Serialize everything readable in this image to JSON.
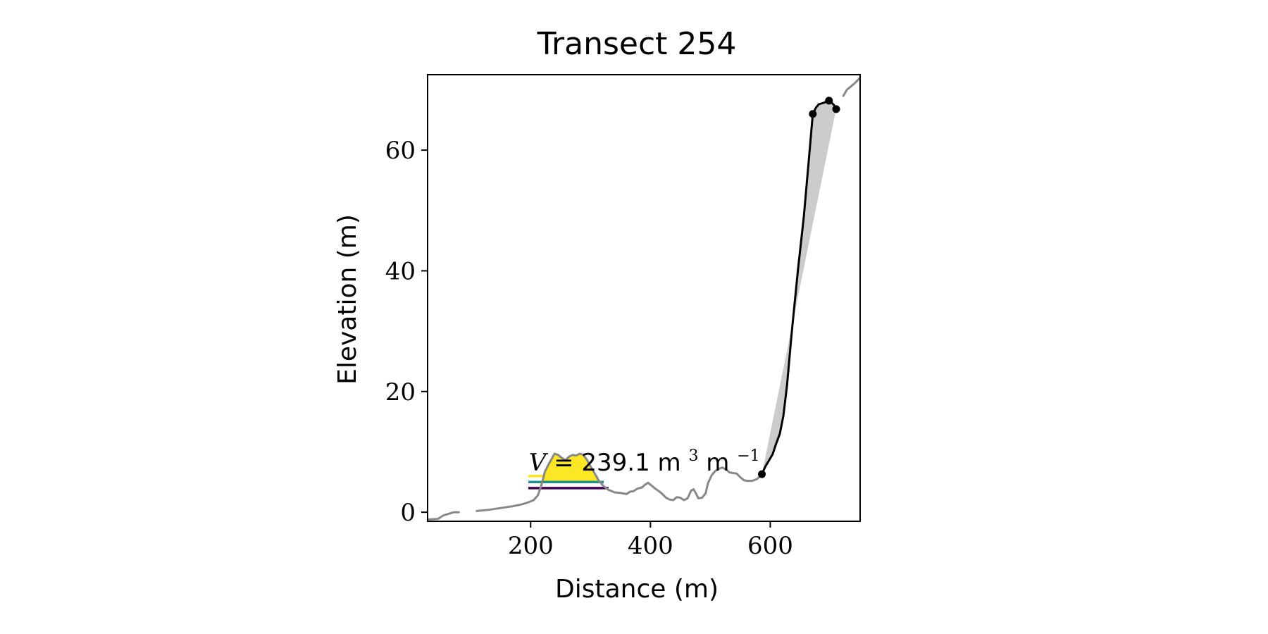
{
  "chart_data": {
    "type": "line",
    "title": "Transect 254",
    "xlabel": "Distance (m)",
    "ylabel": "Elevation (m)",
    "xlim": [
      28,
      750
    ],
    "ylim": [
      -1.5,
      72.5
    ],
    "xticks": [
      200,
      400,
      600
    ],
    "yticks": [
      0,
      20,
      40,
      60
    ],
    "grid": false,
    "annotation": {
      "x": 197,
      "y": 6.9,
      "variable": "V",
      "subscript": "",
      "text": "= 239.1 m",
      "sup1": "3",
      "unit2": " m",
      "sup2": "−1"
    },
    "series": [
      {
        "role": "profile",
        "color": "#888888",
        "segments": [
          [
            [
              28,
              -1.2
            ],
            [
              45,
              -1.1
            ],
            [
              55,
              -0.5
            ],
            [
              62,
              -0.3
            ],
            [
              72,
              0.0
            ],
            [
              80,
              0.0
            ]
          ],
          [
            [
              110,
              0.2
            ],
            [
              130,
              0.4
            ],
            [
              150,
              0.7
            ],
            [
              170,
              1.0
            ],
            [
              185,
              1.3
            ],
            [
              195,
              1.6
            ],
            [
              205,
              2.0
            ],
            [
              212,
              2.8
            ],
            [
              218,
              4.5
            ],
            [
              224,
              6.8
            ],
            [
              232,
              8.3
            ],
            [
              240,
              9.7
            ],
            [
              246,
              9.5
            ],
            [
              252,
              9.0
            ],
            [
              258,
              8.6
            ],
            [
              264,
              9.2
            ],
            [
              270,
              9.5
            ],
            [
              276,
              9.4
            ],
            [
              282,
              9.7
            ],
            [
              288,
              9.5
            ],
            [
              294,
              8.7
            ],
            [
              300,
              7.6
            ],
            [
              306,
              6.6
            ],
            [
              314,
              5.2
            ],
            [
              322,
              4.3
            ],
            [
              330,
              3.7
            ],
            [
              340,
              3.3
            ],
            [
              350,
              3.2
            ],
            [
              360,
              3.0
            ],
            [
              366,
              3.4
            ],
            [
              372,
              3.5
            ],
            [
              378,
              3.9
            ],
            [
              386,
              4.1
            ],
            [
              390,
              4.5
            ],
            [
              396,
              4.9
            ],
            [
              402,
              4.4
            ],
            [
              408,
              3.9
            ],
            [
              414,
              3.5
            ],
            [
              420,
              3.0
            ],
            [
              426,
              2.4
            ],
            [
              432,
              2.1
            ],
            [
              438,
              2.0
            ],
            [
              444,
              2.5
            ],
            [
              450,
              2.4
            ],
            [
              456,
              2.0
            ],
            [
              462,
              2.3
            ],
            [
              468,
              3.6
            ],
            [
              472,
              3.8
            ],
            [
              476,
              3.1
            ],
            [
              480,
              2.3
            ],
            [
              486,
              2.4
            ],
            [
              492,
              3.1
            ],
            [
              496,
              4.8
            ],
            [
              502,
              6.1
            ],
            [
              508,
              6.8
            ],
            [
              514,
              7.2
            ],
            [
              520,
              7.4
            ],
            [
              526,
              7.1
            ],
            [
              532,
              6.6
            ],
            [
              538,
              6.5
            ],
            [
              544,
              6.4
            ],
            [
              550,
              5.8
            ],
            [
              556,
              5.3
            ],
            [
              562,
              5.2
            ],
            [
              570,
              5.2
            ],
            [
              578,
              5.5
            ],
            [
              586,
              6.3
            ]
          ],
          [
            [
              722,
              69.0
            ],
            [
              728,
              70.0
            ],
            [
              740,
              71.0
            ],
            [
              750,
              72.0
            ]
          ]
        ]
      },
      {
        "role": "cliff",
        "color": "#000000",
        "points": [
          [
            586,
            6.3
          ],
          [
            592,
            7.6
          ],
          [
            598,
            8.6
          ],
          [
            604,
            9.6
          ],
          [
            610,
            11.4
          ],
          [
            616,
            13.0
          ],
          [
            622,
            16.0
          ],
          [
            628,
            21.0
          ],
          [
            636,
            30.0
          ],
          [
            646,
            40.0
          ],
          [
            656,
            49.0
          ],
          [
            664,
            58.0
          ],
          [
            671,
            66.0
          ],
          [
            676,
            67.0
          ],
          [
            681,
            67.6
          ],
          [
            691,
            67.9
          ],
          [
            696,
            68.2
          ],
          [
            700,
            68.1
          ],
          [
            704,
            67.7
          ],
          [
            706,
            67.5
          ],
          [
            708,
            67.2
          ],
          [
            710,
            66.8
          ]
        ]
      }
    ],
    "markers": {
      "color": "#000000",
      "points": [
        [
          586,
          6.3
        ],
        [
          671,
          66.0
        ],
        [
          698,
          68.2
        ],
        [
          710,
          66.8
        ]
      ]
    },
    "fills": [
      {
        "role": "cliff-wedge",
        "color": "#cccccc",
        "polygon": [
          [
            586,
            6.3
          ],
          [
            592,
            7.6
          ],
          [
            598,
            8.6
          ],
          [
            604,
            9.6
          ],
          [
            610,
            11.4
          ],
          [
            616,
            13.0
          ],
          [
            622,
            16.0
          ],
          [
            628,
            21.0
          ],
          [
            636,
            30.0
          ],
          [
            646,
            40.0
          ],
          [
            656,
            49.0
          ],
          [
            664,
            58.0
          ],
          [
            671,
            66.0
          ],
          [
            676,
            67.0
          ],
          [
            681,
            67.6
          ],
          [
            691,
            67.9
          ],
          [
            696,
            68.2
          ],
          [
            700,
            68.1
          ],
          [
            704,
            67.7
          ],
          [
            706,
            67.5
          ],
          [
            708,
            67.2
          ],
          [
            710,
            66.8
          ]
        ]
      },
      {
        "role": "dune-area",
        "color": "#fde725",
        "polygon": [
          [
            216,
            4.5
          ],
          [
            218,
            4.5
          ],
          [
            224,
            6.8
          ],
          [
            232,
            8.3
          ],
          [
            240,
            9.7
          ],
          [
            246,
            9.5
          ],
          [
            252,
            9.0
          ],
          [
            258,
            8.6
          ],
          [
            264,
            9.2
          ],
          [
            270,
            9.5
          ],
          [
            276,
            9.4
          ],
          [
            282,
            9.7
          ],
          [
            288,
            9.5
          ],
          [
            294,
            8.7
          ],
          [
            300,
            7.6
          ],
          [
            306,
            6.6
          ],
          [
            314,
            5.2
          ],
          [
            316,
            5.0
          ],
          [
            216,
            5.0
          ]
        ]
      }
    ],
    "levels": [
      {
        "color": "#440154",
        "x_start": 196,
        "x_end": 330,
        "y": 4.0
      },
      {
        "color": "#21918c",
        "x_start": 196,
        "x_end": 322,
        "y": 5.0
      },
      {
        "color": "#fde725",
        "x_start": 196,
        "x_end": 312,
        "y": 6.0
      }
    ]
  }
}
